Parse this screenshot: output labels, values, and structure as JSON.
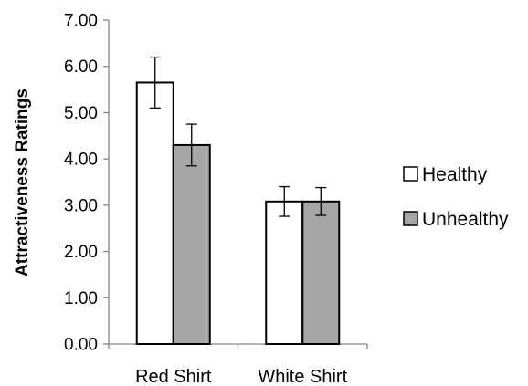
{
  "chart_data": {
    "type": "bar",
    "title": "",
    "xlabel": "",
    "ylabel": "Attractiveness Ratings",
    "ylim": [
      0,
      7
    ],
    "yticks": [
      "0.00",
      "1.00",
      "2.00",
      "3.00",
      "4.00",
      "5.00",
      "6.00",
      "7.00"
    ],
    "categories": [
      "Red Shirt",
      "White Shirt"
    ],
    "series": [
      {
        "name": "Healthy",
        "values": [
          5.65,
          3.08
        ],
        "errors": [
          0.55,
          0.32
        ],
        "color": "#ffffff"
      },
      {
        "name": "Unhealthy",
        "values": [
          4.3,
          3.08
        ],
        "errors": [
          0.45,
          0.3
        ],
        "color": "#a6a6a6"
      }
    ],
    "grid": false,
    "legend_position": "right"
  }
}
